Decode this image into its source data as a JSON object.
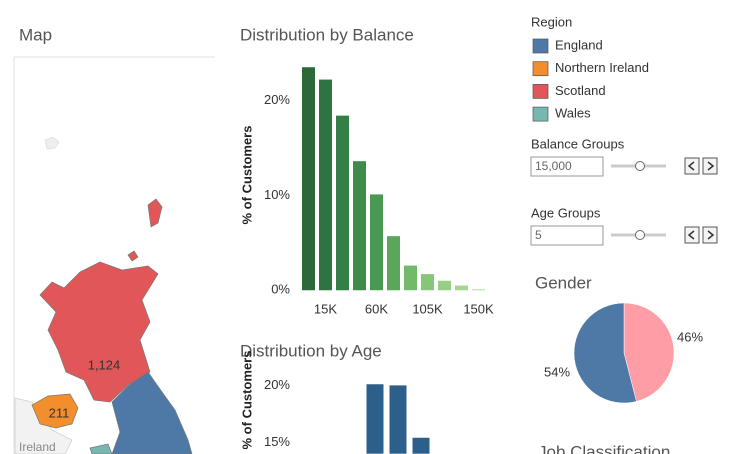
{
  "map": {
    "title": "Map",
    "labels": [
      "1,124",
      "211",
      "Ireland"
    ]
  },
  "legend": {
    "title": "Region",
    "items": [
      {
        "name": "England",
        "color": "#4e79a7"
      },
      {
        "name": "Northern Ireland",
        "color": "#f28e2b"
      },
      {
        "name": "Scotland",
        "color": "#e15759"
      },
      {
        "name": "Wales",
        "color": "#76b7b2"
      }
    ]
  },
  "controls": [
    {
      "label": "Balance Groups",
      "value": "15,000"
    },
    {
      "label": "Age Groups",
      "value": "5"
    }
  ],
  "job_title": "Job Classification",
  "chart_data": [
    {
      "type": "bar",
      "title": "Distribution by Balance",
      "y_label": "% of Customers",
      "categories": [
        null,
        "15K",
        null,
        null,
        "60K",
        null,
        null,
        "105K",
        null,
        null,
        "150K"
      ],
      "values": [
        23.5,
        22.2,
        18.4,
        13.6,
        10.1,
        5.7,
        2.6,
        1.7,
        1.0,
        0.5,
        0.1
      ],
      "colors": [
        "#2b6a38",
        "#2f7440",
        "#347f45",
        "#3f8b4b",
        "#4a9852",
        "#5aa75c",
        "#72b96a",
        "#86c679",
        "#97d085",
        "#a3d78f",
        "#acdc97"
      ],
      "ylim": [
        -0.5,
        25
      ],
      "yticks": [
        {
          "value": 0,
          "label": "0%"
        },
        {
          "value": 10,
          "label": "10%"
        },
        {
          "value": 20,
          "label": "20%"
        }
      ]
    },
    {
      "type": "bar",
      "title": "Distribution by Age",
      "y_label": "% of Customers",
      "categories": [
        null,
        null,
        null
      ],
      "values": [
        20.1,
        20.0,
        15.4
      ],
      "color": "#2d5f8b",
      "ylim": [
        14,
        21
      ],
      "yticks": [
        {
          "value": 15,
          "label": "15%"
        },
        {
          "value": 20,
          "label": "20%"
        }
      ]
    },
    {
      "type": "pie",
      "title": "Gender",
      "values": [
        46,
        54
      ],
      "value_labels": [
        "46%",
        "54%"
      ],
      "colors": [
        "#ff9da7",
        "#4e79a7"
      ]
    }
  ]
}
